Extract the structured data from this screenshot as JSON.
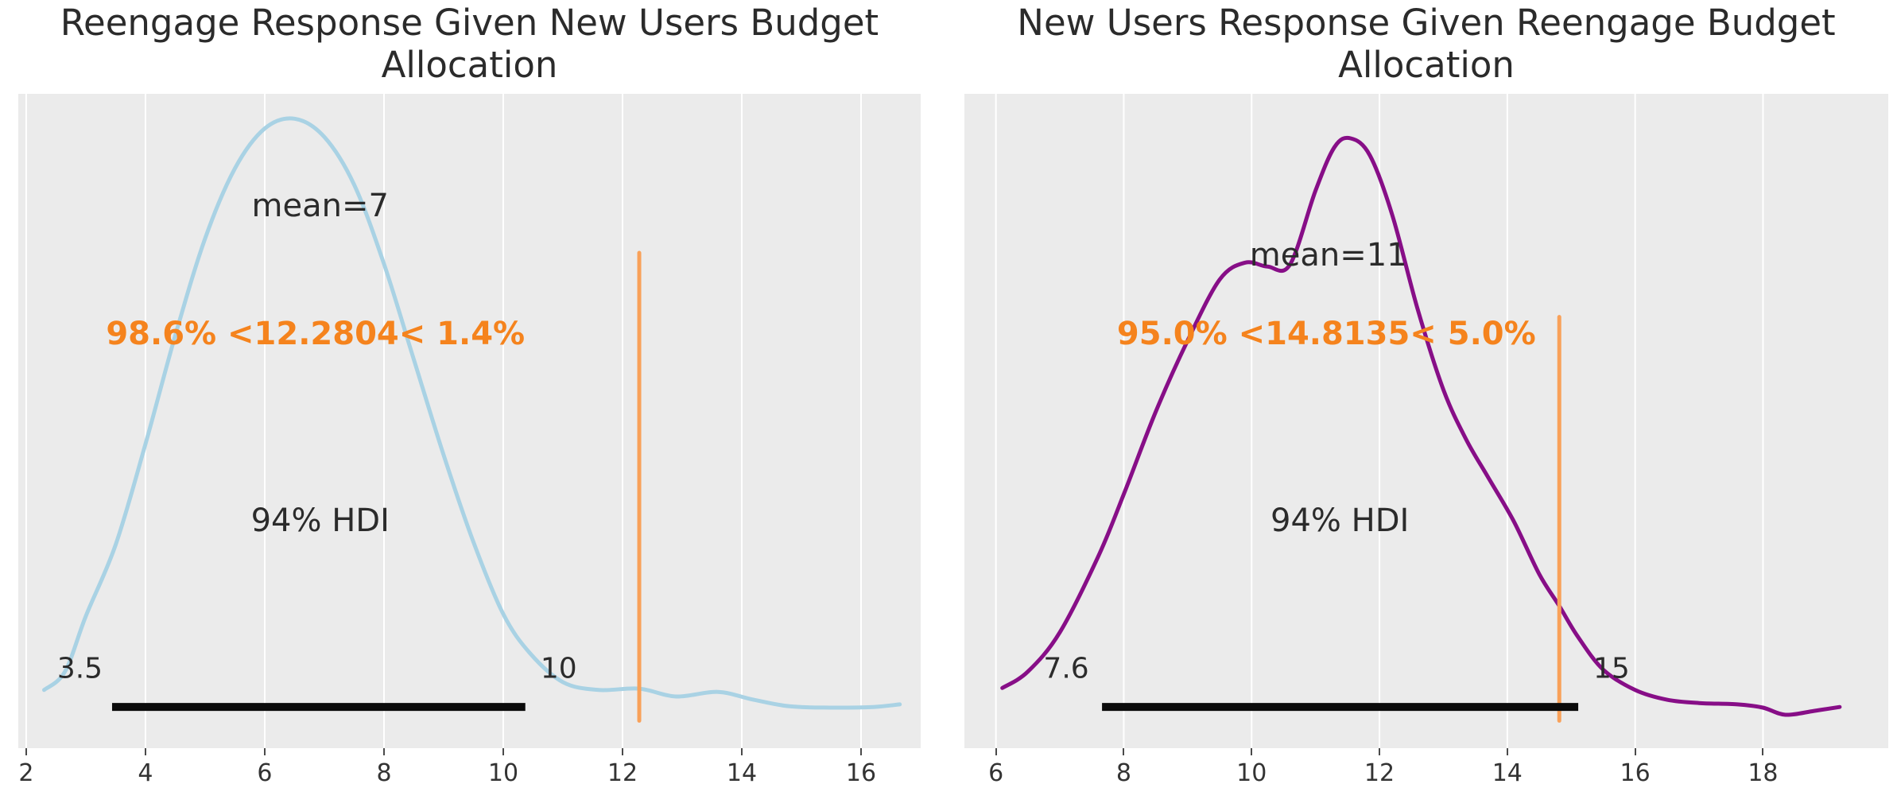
{
  "figure": {
    "background": "#ffffff",
    "panel_background": "#ebebeb",
    "gridline_color": "#ffffff",
    "text_color": "#2b2b2b",
    "orange_text_color": "#f5831d",
    "orange_line_color": "#f9a159",
    "hdi_bar_color": "#0b0b0b",
    "tick_color": "#4a4a4a"
  },
  "chart_data": [
    {
      "type": "line",
      "subtype": "kde-posterior",
      "title": "Reengage Response Given New Users Budget Allocation",
      "title_line1": "Reengage Response Given New Users Budget",
      "title_line2": "Allocation",
      "curve_color": "#a9d2e4",
      "x_range": [
        1.867,
        17.0
      ],
      "x_ticks": [
        2,
        4,
        6,
        8,
        10,
        12,
        14,
        16
      ],
      "grid": "vertical-only",
      "legend": "none",
      "mean": {
        "value": 7,
        "text": "mean=7",
        "x": 6.93,
        "fy": 0.829
      },
      "ref_line": {
        "value": 12.2804,
        "text": "98.6% <12.2804< 1.4%",
        "pct_below": "98.6%",
        "pct_above": "1.4%",
        "x": 12.2804,
        "top_fy": 0.757,
        "bottom_fy": 0.042,
        "text_x": 6.85,
        "text_fy": 0.633
      },
      "hdi": {
        "label": "94% HDI",
        "label_x": 6.93,
        "label_fy": 0.347,
        "lower_label": "3.5",
        "upper_label": "10",
        "lower": 3.44,
        "upper": 10.37,
        "bar_fy": 0.063,
        "lower_label_x": 2.9,
        "upper_label_x": 10.93,
        "end_label_fy": 0.121
      },
      "kde_x": [
        2.3,
        2.65,
        3.0,
        3.5,
        4.0,
        4.5,
        5.0,
        5.5,
        6.0,
        6.5,
        7.0,
        7.5,
        8.0,
        8.5,
        9.0,
        9.5,
        10.0,
        10.45,
        11.0,
        11.6,
        12.28,
        12.9,
        13.6,
        14.2,
        14.8,
        15.5,
        16.2,
        16.65
      ],
      "kde_fy": [
        0.089,
        0.117,
        0.202,
        0.311,
        0.465,
        0.631,
        0.779,
        0.886,
        0.947,
        0.962,
        0.934,
        0.861,
        0.74,
        0.594,
        0.448,
        0.315,
        0.205,
        0.145,
        0.101,
        0.089,
        0.091,
        0.079,
        0.086,
        0.074,
        0.064,
        0.062,
        0.063,
        0.067
      ]
    },
    {
      "type": "line",
      "subtype": "kde-posterior",
      "title": "New Users Response Given Reengage Budget Allocation",
      "title_line1": "New Users Response Given Reengage Budget",
      "title_line2": "Allocation",
      "curve_color": "#870e87",
      "x_range": [
        5.507,
        19.96
      ],
      "x_ticks": [
        6,
        8,
        10,
        12,
        14,
        16,
        18
      ],
      "grid": "vertical-only",
      "legend": "none",
      "mean": {
        "value": 11,
        "text": "mean=11",
        "x": 11.2,
        "fy": 0.753
      },
      "ref_line": {
        "value": 14.8135,
        "text": "95.0% <14.8135< 5.0%",
        "pct_below": "95.0%",
        "pct_above": "5.0%",
        "x": 14.8135,
        "top_fy": 0.659,
        "bottom_fy": 0.042,
        "text_x": 11.17,
        "text_fy": 0.633
      },
      "hdi": {
        "label": "94% HDI",
        "label_x": 11.38,
        "label_fy": 0.347,
        "lower_label": "7.6",
        "upper_label": "15",
        "lower": 7.66,
        "upper": 15.11,
        "bar_fy": 0.063,
        "lower_label_x": 7.1,
        "upper_label_x": 15.63,
        "end_label_fy": 0.121
      },
      "kde_x": [
        6.1,
        6.5,
        7.0,
        7.6,
        8.0,
        8.5,
        9.0,
        9.5,
        9.9,
        10.25,
        10.6,
        11.0,
        11.3,
        11.55,
        11.85,
        12.2,
        12.6,
        13.0,
        13.35,
        13.7,
        14.1,
        14.5,
        14.81,
        15.1,
        15.5,
        16.0,
        16.5,
        17.0,
        17.6,
        18.0,
        18.35,
        18.8,
        19.2
      ],
      "kde_fy": [
        0.092,
        0.117,
        0.177,
        0.293,
        0.388,
        0.514,
        0.623,
        0.716,
        0.742,
        0.736,
        0.739,
        0.852,
        0.919,
        0.932,
        0.906,
        0.815,
        0.67,
        0.548,
        0.473,
        0.414,
        0.347,
        0.266,
        0.218,
        0.171,
        0.12,
        0.089,
        0.074,
        0.069,
        0.067,
        0.062,
        0.051,
        0.057,
        0.063
      ]
    }
  ]
}
